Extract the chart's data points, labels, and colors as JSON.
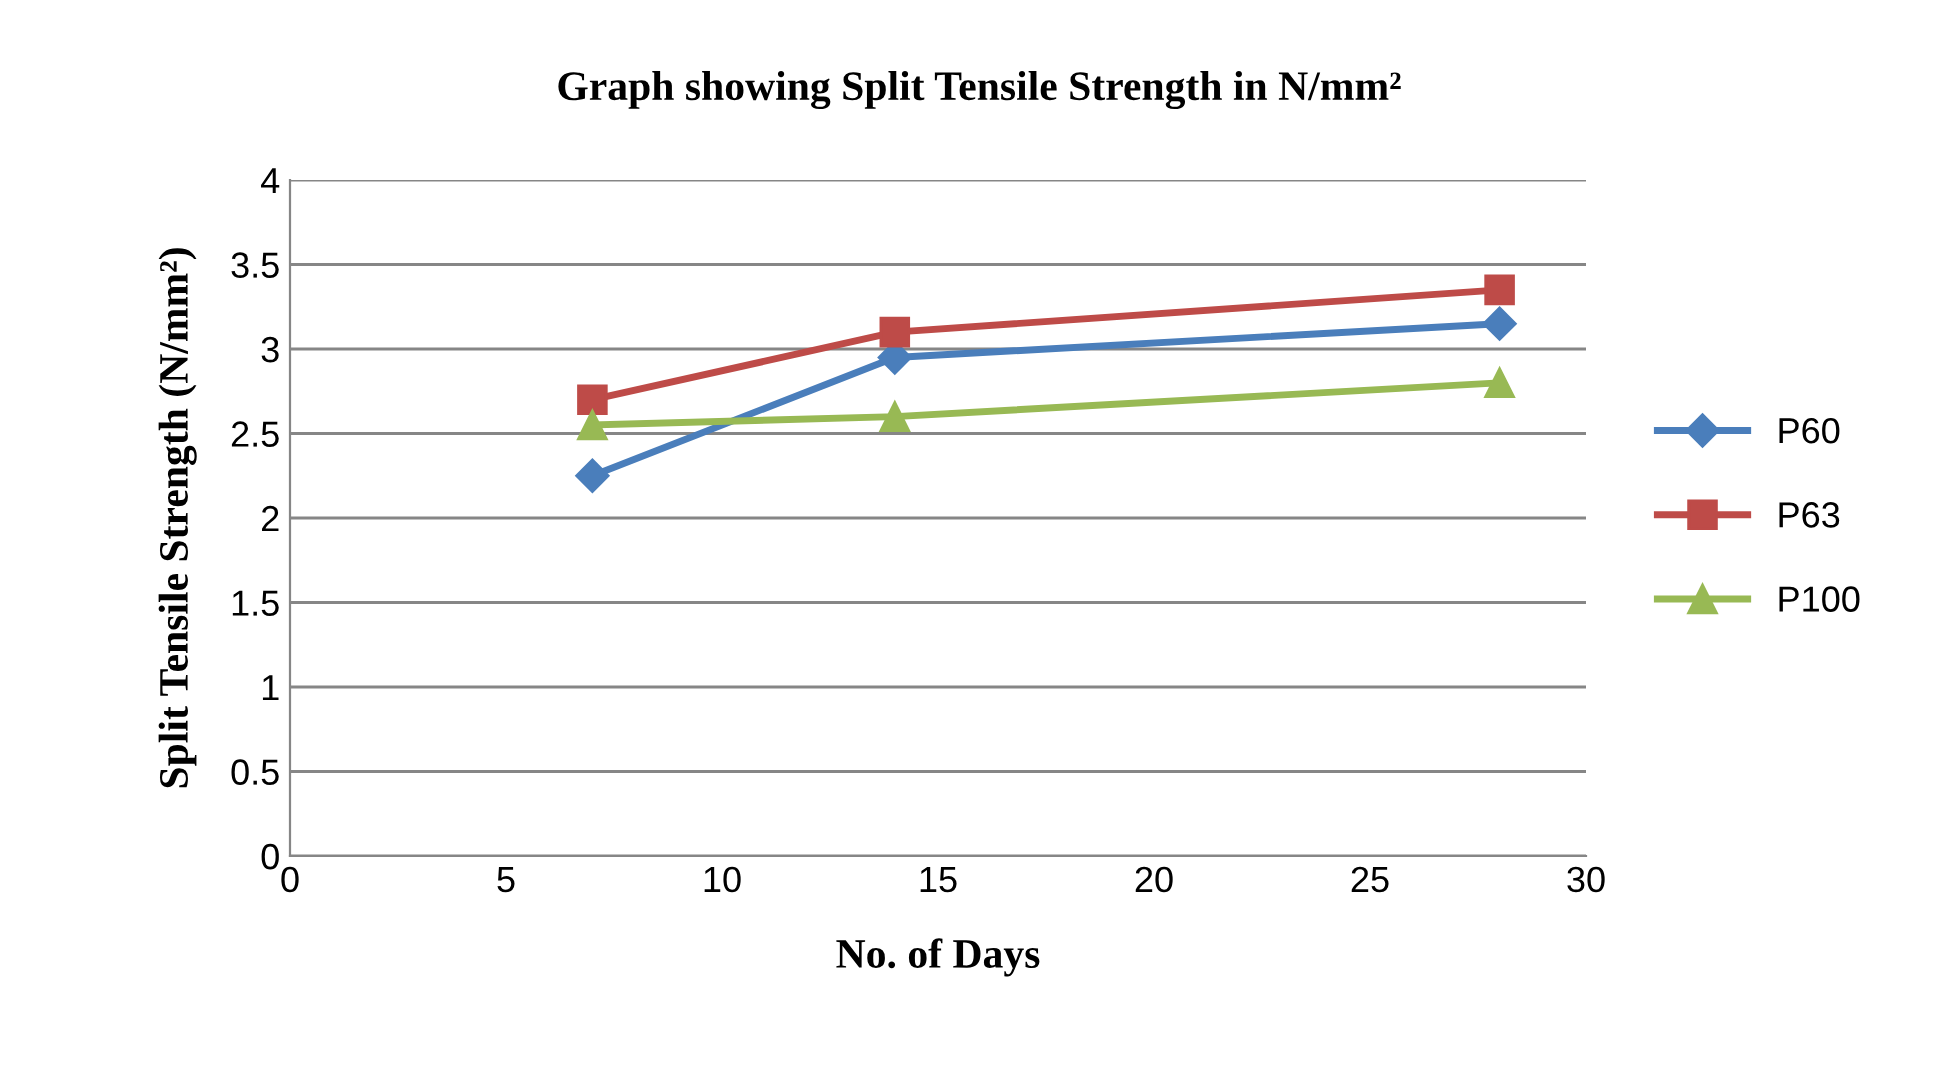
{
  "chart_data": {
    "type": "line",
    "title": "Graph showing Split Tensile Strength in N/mm²",
    "xlabel": "No. of Days",
    "ylabel": "Split Tensile Strength (N/mm²)",
    "x": [
      7,
      14,
      28
    ],
    "series": [
      {
        "name": "P60",
        "color": "#4a7ebb",
        "values": [
          2.25,
          2.95,
          3.15
        ],
        "marker": "diamond"
      },
      {
        "name": "P63",
        "color": "#be4b48",
        "values": [
          2.7,
          3.1,
          3.35
        ],
        "marker": "square"
      },
      {
        "name": "P100",
        "color": "#98b954",
        "values": [
          2.55,
          2.6,
          2.8
        ],
        "marker": "triangle"
      }
    ],
    "xlim": [
      0,
      30
    ],
    "xticks": [
      0,
      5,
      10,
      15,
      20,
      25,
      30
    ],
    "ylim": [
      0,
      4
    ],
    "yticks": [
      0,
      0.5,
      1,
      1.5,
      2,
      2.5,
      3,
      3.5,
      4
    ],
    "grid": "y",
    "legend": "right",
    "line_style": "solid"
  }
}
